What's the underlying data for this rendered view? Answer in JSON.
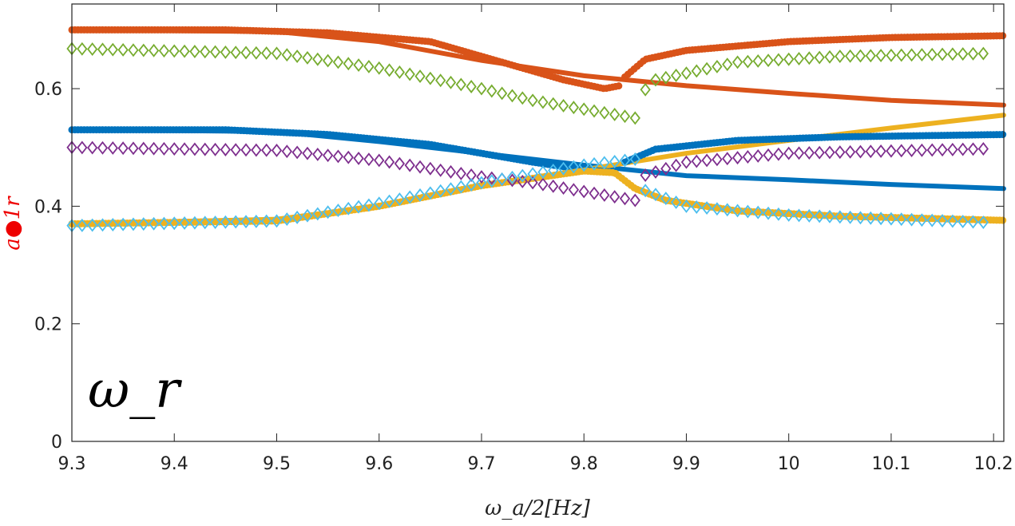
{
  "chart_data": {
    "type": "line",
    "title": "",
    "xlabel": "ω_a/2[Hz]",
    "ylabel": "a●1r",
    "annotation": "ω_r",
    "xlim": [
      9.3,
      10.21
    ],
    "ylim": [
      0,
      0.744
    ],
    "xticks": [
      "9.3",
      "9.4",
      "9.5",
      "9.6",
      "9.7",
      "9.8",
      "9.9",
      "10",
      "10.1",
      "10.2"
    ],
    "xtick_values": [
      9.3,
      9.4,
      9.5,
      9.6,
      9.7,
      9.8,
      9.9,
      10,
      10.1,
      10.2
    ],
    "yticks": [
      "0",
      "0.2",
      "0.4",
      "0.6"
    ],
    "ytick_values": [
      0,
      0.2,
      0.4,
      0.6
    ],
    "grid": false,
    "diamond_x_step": 0.01,
    "series": [
      {
        "name": "orange-line",
        "style": "line",
        "color": "#d95319",
        "points": [
          [
            9.3,
            0.7
          ],
          [
            9.5,
            0.697
          ],
          [
            9.6,
            0.68
          ],
          [
            9.7,
            0.648
          ],
          [
            9.8,
            0.622
          ],
          [
            9.9,
            0.605
          ],
          [
            10.0,
            0.592
          ],
          [
            10.1,
            0.58
          ],
          [
            10.21,
            0.572
          ]
        ]
      },
      {
        "name": "orange-dots-a",
        "style": "dots",
        "color": "#d95319",
        "points": [
          [
            9.3,
            0.7
          ],
          [
            9.45,
            0.7
          ],
          [
            9.55,
            0.695
          ],
          [
            9.65,
            0.68
          ],
          [
            9.72,
            0.645
          ],
          [
            9.78,
            0.615
          ],
          [
            9.82,
            0.6
          ],
          [
            9.835,
            0.605
          ]
        ]
      },
      {
        "name": "orange-dots-b",
        "style": "dots",
        "color": "#d95319",
        "points": [
          [
            9.84,
            0.62
          ],
          [
            9.86,
            0.65
          ],
          [
            9.9,
            0.665
          ],
          [
            10.0,
            0.68
          ],
          [
            10.1,
            0.687
          ],
          [
            10.21,
            0.69
          ]
        ]
      },
      {
        "name": "blue-line",
        "style": "line",
        "color": "#0072bd",
        "points": [
          [
            9.3,
            0.53
          ],
          [
            9.5,
            0.527
          ],
          [
            9.6,
            0.51
          ],
          [
            9.7,
            0.49
          ],
          [
            9.8,
            0.47
          ],
          [
            9.9,
            0.452
          ],
          [
            10.0,
            0.445
          ],
          [
            10.1,
            0.437
          ],
          [
            10.21,
            0.43
          ]
        ]
      },
      {
        "name": "blue-dots-a",
        "style": "dots",
        "color": "#0072bd",
        "points": [
          [
            9.3,
            0.53
          ],
          [
            9.45,
            0.53
          ],
          [
            9.55,
            0.522
          ],
          [
            9.65,
            0.505
          ],
          [
            9.75,
            0.475
          ],
          [
            9.8,
            0.462
          ],
          [
            9.83,
            0.458
          ]
        ]
      },
      {
        "name": "blue-dots-b",
        "style": "dots",
        "color": "#0072bd",
        "points": [
          [
            9.84,
            0.475
          ],
          [
            9.87,
            0.497
          ],
          [
            9.95,
            0.512
          ],
          [
            10.05,
            0.518
          ],
          [
            10.21,
            0.522
          ]
        ]
      },
      {
        "name": "yellow-line",
        "style": "line",
        "color": "#edb120",
        "points": [
          [
            9.3,
            0.37
          ],
          [
            9.5,
            0.378
          ],
          [
            9.6,
            0.4
          ],
          [
            9.7,
            0.435
          ],
          [
            9.8,
            0.462
          ],
          [
            9.9,
            0.49
          ],
          [
            10.0,
            0.512
          ],
          [
            10.1,
            0.533
          ],
          [
            10.21,
            0.555
          ]
        ]
      },
      {
        "name": "yellow-dots",
        "style": "dots",
        "color": "#edb120",
        "points": [
          [
            9.3,
            0.37
          ],
          [
            9.5,
            0.375
          ],
          [
            9.6,
            0.4
          ],
          [
            9.7,
            0.435
          ],
          [
            9.8,
            0.46
          ],
          [
            9.83,
            0.457
          ],
          [
            9.85,
            0.43
          ],
          [
            9.88,
            0.41
          ],
          [
            9.95,
            0.392
          ],
          [
            10.05,
            0.383
          ],
          [
            10.21,
            0.376
          ]
        ]
      },
      {
        "name": "green-diamonds",
        "style": "diamonds",
        "color": "#77ac30",
        "points": [
          [
            9.3,
            0.668
          ],
          [
            9.5,
            0.66
          ],
          [
            9.6,
            0.635
          ],
          [
            9.7,
            0.6
          ],
          [
            9.75,
            0.58
          ],
          [
            9.85,
            0.55
          ],
          [
            9.855,
            0.59
          ],
          [
            9.87,
            0.615
          ],
          [
            9.95,
            0.645
          ],
          [
            10.05,
            0.655
          ],
          [
            10.2,
            0.66
          ]
        ]
      },
      {
        "name": "purple-diamonds",
        "style": "diamonds",
        "color": "#7e2f8e",
        "points": [
          [
            9.3,
            0.5
          ],
          [
            9.5,
            0.495
          ],
          [
            9.6,
            0.478
          ],
          [
            9.7,
            0.45
          ],
          [
            9.75,
            0.44
          ],
          [
            9.85,
            0.41
          ],
          [
            9.855,
            0.45
          ],
          [
            9.9,
            0.475
          ],
          [
            10.0,
            0.49
          ],
          [
            10.2,
            0.498
          ]
        ]
      },
      {
        "name": "cyan-diamonds",
        "style": "diamonds",
        "color": "#4dbeee",
        "points": [
          [
            9.3,
            0.367
          ],
          [
            9.5,
            0.375
          ],
          [
            9.6,
            0.405
          ],
          [
            9.7,
            0.44
          ],
          [
            9.8,
            0.47
          ],
          [
            9.85,
            0.48
          ],
          [
            9.855,
            0.43
          ],
          [
            9.9,
            0.4
          ],
          [
            10.0,
            0.385
          ],
          [
            10.2,
            0.372
          ]
        ]
      }
    ]
  }
}
